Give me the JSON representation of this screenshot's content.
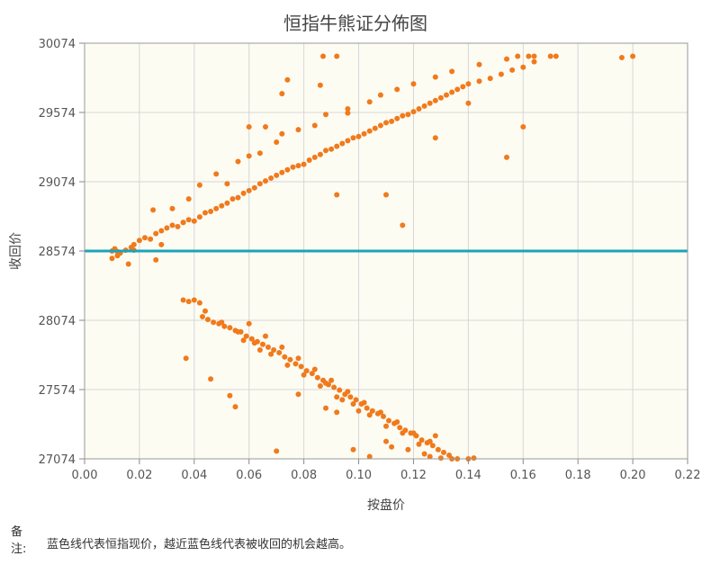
{
  "chart_data": {
    "type": "scatter",
    "title": "恒指牛熊证分佈图",
    "xlabel": "按盘价",
    "ylabel": "收回价",
    "xlim": [
      0.0,
      0.22
    ],
    "ylim": [
      27074,
      30074
    ],
    "x_ticks": [
      "0.00",
      "0.02",
      "0.04",
      "0.06",
      "0.08",
      "0.10",
      "0.12",
      "0.14",
      "0.16",
      "0.18",
      "0.20",
      "0.22"
    ],
    "y_ticks": [
      "30074",
      "29574",
      "29074",
      "28574",
      "28074",
      "27574",
      "27074"
    ],
    "grid": true,
    "reference_line": {
      "y": 28574,
      "color": "#1aa3b8"
    },
    "point_color": "#f07a1c",
    "bull_points": [
      [
        0.01,
        28574
      ],
      [
        0.011,
        28590
      ],
      [
        0.012,
        28570
      ],
      [
        0.013,
        28560
      ],
      [
        0.015,
        28580
      ],
      [
        0.017,
        28600
      ],
      [
        0.018,
        28620
      ],
      [
        0.02,
        28650
      ],
      [
        0.022,
        28670
      ],
      [
        0.024,
        28660
      ],
      [
        0.026,
        28700
      ],
      [
        0.028,
        28720
      ],
      [
        0.03,
        28740
      ],
      [
        0.032,
        28760
      ],
      [
        0.034,
        28750
      ],
      [
        0.036,
        28780
      ],
      [
        0.038,
        28800
      ],
      [
        0.04,
        28790
      ],
      [
        0.042,
        28820
      ],
      [
        0.044,
        28850
      ],
      [
        0.046,
        28860
      ],
      [
        0.048,
        28880
      ],
      [
        0.05,
        28900
      ],
      [
        0.052,
        28920
      ],
      [
        0.054,
        28950
      ],
      [
        0.056,
        28960
      ],
      [
        0.058,
        28990
      ],
      [
        0.06,
        29010
      ],
      [
        0.062,
        29030
      ],
      [
        0.064,
        29060
      ],
      [
        0.066,
        29080
      ],
      [
        0.068,
        29100
      ],
      [
        0.07,
        29120
      ],
      [
        0.072,
        29140
      ],
      [
        0.074,
        29160
      ],
      [
        0.076,
        29180
      ],
      [
        0.078,
        29190
      ],
      [
        0.08,
        29200
      ],
      [
        0.082,
        29230
      ],
      [
        0.084,
        29250
      ],
      [
        0.086,
        29270
      ],
      [
        0.088,
        29300
      ],
      [
        0.09,
        29310
      ],
      [
        0.092,
        29330
      ],
      [
        0.094,
        29350
      ],
      [
        0.096,
        29370
      ],
      [
        0.098,
        29390
      ],
      [
        0.1,
        29400
      ],
      [
        0.102,
        29420
      ],
      [
        0.104,
        29440
      ],
      [
        0.106,
        29460
      ],
      [
        0.108,
        29480
      ],
      [
        0.11,
        29500
      ],
      [
        0.112,
        29510
      ],
      [
        0.114,
        29530
      ],
      [
        0.116,
        29550
      ],
      [
        0.118,
        29560
      ],
      [
        0.12,
        29580
      ],
      [
        0.122,
        29600
      ],
      [
        0.124,
        29620
      ],
      [
        0.126,
        29640
      ],
      [
        0.128,
        29660
      ],
      [
        0.13,
        29680
      ],
      [
        0.132,
        29700
      ],
      [
        0.134,
        29720
      ],
      [
        0.136,
        29740
      ],
      [
        0.138,
        29760
      ],
      [
        0.14,
        29780
      ],
      [
        0.144,
        29800
      ],
      [
        0.148,
        29820
      ],
      [
        0.152,
        29850
      ],
      [
        0.156,
        29880
      ],
      [
        0.16,
        29900
      ],
      [
        0.164,
        29940
      ],
      [
        0.17,
        29980
      ],
      [
        0.025,
        28870
      ],
      [
        0.032,
        28880
      ],
      [
        0.038,
        28950
      ],
      [
        0.042,
        29050
      ],
      [
        0.048,
        29130
      ],
      [
        0.056,
        29220
      ],
      [
        0.06,
        29260
      ],
      [
        0.064,
        29280
      ],
      [
        0.07,
        29360
      ],
      [
        0.072,
        29420
      ],
      [
        0.078,
        29450
      ],
      [
        0.084,
        29480
      ],
      [
        0.088,
        29560
      ],
      [
        0.096,
        29600
      ],
      [
        0.104,
        29650
      ],
      [
        0.108,
        29700
      ],
      [
        0.114,
        29740
      ],
      [
        0.12,
        29780
      ],
      [
        0.128,
        29830
      ],
      [
        0.134,
        29870
      ],
      [
        0.144,
        29920
      ],
      [
        0.154,
        29960
      ],
      [
        0.162,
        29980
      ],
      [
        0.086,
        29770
      ],
      [
        0.087,
        29980
      ],
      [
        0.092,
        29980
      ],
      [
        0.074,
        29810
      ],
      [
        0.072,
        29710
      ],
      [
        0.096,
        29570
      ],
      [
        0.092,
        28980
      ],
      [
        0.11,
        28980
      ],
      [
        0.116,
        28760
      ],
      [
        0.128,
        29390
      ],
      [
        0.154,
        29250
      ],
      [
        0.16,
        29470
      ],
      [
        0.196,
        29970
      ],
      [
        0.2,
        29980
      ],
      [
        0.158,
        29980
      ],
      [
        0.164,
        29980
      ],
      [
        0.172,
        29980
      ],
      [
        0.14,
        29640
      ],
      [
        0.026,
        28510
      ],
      [
        0.016,
        28480
      ],
      [
        0.06,
        29470
      ],
      [
        0.066,
        29470
      ],
      [
        0.052,
        29060
      ],
      [
        0.036,
        28780
      ],
      [
        0.028,
        28620
      ],
      [
        0.018,
        28580
      ],
      [
        0.012,
        28540
      ],
      [
        0.01,
        28520
      ]
    ],
    "bear_points": [
      [
        0.036,
        28220
      ],
      [
        0.038,
        28210
      ],
      [
        0.04,
        28220
      ],
      [
        0.042,
        28200
      ],
      [
        0.043,
        28100
      ],
      [
        0.045,
        28080
      ],
      [
        0.047,
        28060
      ],
      [
        0.049,
        28050
      ],
      [
        0.051,
        28030
      ],
      [
        0.053,
        28020
      ],
      [
        0.055,
        28000
      ],
      [
        0.057,
        27990
      ],
      [
        0.059,
        27960
      ],
      [
        0.061,
        27940
      ],
      [
        0.063,
        27920
      ],
      [
        0.065,
        27900
      ],
      [
        0.067,
        27880
      ],
      [
        0.069,
        27860
      ],
      [
        0.071,
        27840
      ],
      [
        0.073,
        27810
      ],
      [
        0.075,
        27790
      ],
      [
        0.077,
        27760
      ],
      [
        0.079,
        27740
      ],
      [
        0.081,
        27710
      ],
      [
        0.083,
        27690
      ],
      [
        0.085,
        27660
      ],
      [
        0.087,
        27640
      ],
      [
        0.089,
        27610
      ],
      [
        0.091,
        27590
      ],
      [
        0.093,
        27570
      ],
      [
        0.095,
        27540
      ],
      [
        0.097,
        27520
      ],
      [
        0.099,
        27500
      ],
      [
        0.101,
        27470
      ],
      [
        0.103,
        27440
      ],
      [
        0.105,
        27420
      ],
      [
        0.107,
        27400
      ],
      [
        0.109,
        27380
      ],
      [
        0.111,
        27350
      ],
      [
        0.113,
        27330
      ],
      [
        0.115,
        27300
      ],
      [
        0.117,
        27280
      ],
      [
        0.119,
        27260
      ],
      [
        0.121,
        27240
      ],
      [
        0.123,
        27210
      ],
      [
        0.125,
        27190
      ],
      [
        0.127,
        27170
      ],
      [
        0.129,
        27140
      ],
      [
        0.131,
        27120
      ],
      [
        0.133,
        27100
      ],
      [
        0.06,
        28050
      ],
      [
        0.066,
        27960
      ],
      [
        0.072,
        27880
      ],
      [
        0.078,
        27800
      ],
      [
        0.084,
        27720
      ],
      [
        0.09,
        27640
      ],
      [
        0.096,
        27560
      ],
      [
        0.102,
        27480
      ],
      [
        0.108,
        27410
      ],
      [
        0.114,
        27340
      ],
      [
        0.12,
        27260
      ],
      [
        0.126,
        27200
      ],
      [
        0.128,
        27240
      ],
      [
        0.122,
        27180
      ],
      [
        0.116,
        27260
      ],
      [
        0.11,
        27310
      ],
      [
        0.104,
        27390
      ],
      [
        0.098,
        27470
      ],
      [
        0.092,
        27520
      ],
      [
        0.086,
        27600
      ],
      [
        0.08,
        27680
      ],
      [
        0.074,
        27750
      ],
      [
        0.068,
        27830
      ],
      [
        0.062,
        27910
      ],
      [
        0.056,
        27990
      ],
      [
        0.05,
        28060
      ],
      [
        0.044,
        28140
      ],
      [
        0.037,
        27800
      ],
      [
        0.046,
        27650
      ],
      [
        0.053,
        27530
      ],
      [
        0.055,
        27450
      ],
      [
        0.07,
        27130
      ],
      [
        0.078,
        27540
      ],
      [
        0.088,
        27440
      ],
      [
        0.092,
        27410
      ],
      [
        0.098,
        27140
      ],
      [
        0.104,
        27090
      ],
      [
        0.11,
        27200
      ],
      [
        0.112,
        27160
      ],
      [
        0.118,
        27140
      ],
      [
        0.124,
        27110
      ],
      [
        0.13,
        27080
      ],
      [
        0.136,
        27074
      ],
      [
        0.14,
        27074
      ],
      [
        0.142,
        27080
      ],
      [
        0.134,
        27074
      ],
      [
        0.126,
        27090
      ],
      [
        0.088,
        27620
      ],
      [
        0.094,
        27500
      ],
      [
        0.1,
        27420
      ],
      [
        0.064,
        27860
      ],
      [
        0.058,
        27930
      ]
    ]
  },
  "note": {
    "label": "备注:",
    "text": "蓝色线代表恒指现价，越近蓝色线代表被收回的机会越高。"
  }
}
